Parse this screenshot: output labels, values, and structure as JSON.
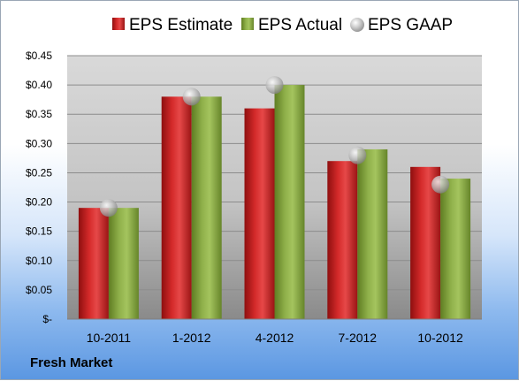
{
  "company": "Fresh Market",
  "colors": {
    "estimate": "#d42a2a",
    "actual": "#8fb04a",
    "gaap": "#c8c8c8"
  },
  "chart_data": {
    "type": "bar",
    "categories": [
      "10-2011",
      "1-2012",
      "4-2012",
      "7-2012",
      "10-2012"
    ],
    "series": [
      {
        "name": "EPS Estimate",
        "kind": "bar",
        "values": [
          0.19,
          0.38,
          0.36,
          0.27,
          0.26
        ]
      },
      {
        "name": "EPS Actual",
        "kind": "bar",
        "values": [
          0.19,
          0.38,
          0.4,
          0.29,
          0.24
        ]
      },
      {
        "name": "EPS GAAP",
        "kind": "marker",
        "values": [
          0.19,
          0.38,
          0.4,
          0.28,
          0.23
        ]
      }
    ],
    "ylim": [
      0,
      0.45
    ],
    "y_ticks": [
      "$-",
      "$0.05",
      "$0.10",
      "$0.15",
      "$0.20",
      "$0.25",
      "$0.30",
      "$0.35",
      "$0.40",
      "$0.45"
    ],
    "grid": true,
    "legend": "top"
  }
}
